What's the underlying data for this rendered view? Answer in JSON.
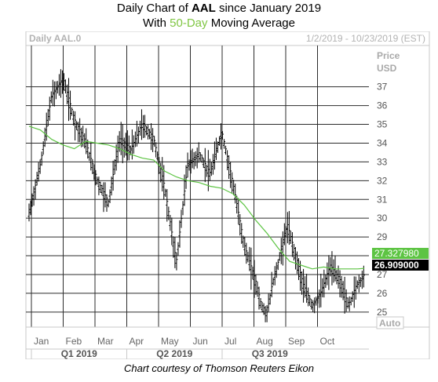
{
  "header": {
    "title_prefix": "Daily Chart of ",
    "ticker": "AAL",
    "title_suffix": " since January 2019",
    "subtitle_prefix": "With ",
    "subtitle_highlight": "50-Day",
    "subtitle_suffix": " Moving Average"
  },
  "chart_data": {
    "type": "line",
    "symbol_label": "Daily AAL.0",
    "date_range": "1/2/2019 - 10/23/2019 (EST)",
    "price_label": "Price",
    "currency_label": "USD",
    "auto_label": "Auto",
    "ylim": [
      24.2,
      39.2
    ],
    "yticks": [
      25,
      26,
      27,
      28,
      29,
      30,
      31,
      32,
      33,
      34,
      35,
      36,
      37
    ],
    "months": [
      "Jan",
      "Feb",
      "Mar",
      "Apr",
      "May",
      "Jun",
      "Jul",
      "Aug",
      "Sep",
      "Oct"
    ],
    "quarters": [
      "Q1 2019",
      "Q2 2019",
      "Q3 2019"
    ],
    "grid": true,
    "colors": {
      "price": "#000000",
      "moving_average": "#5dc443",
      "ma_box": "#5dc443",
      "last_box": "#000000"
    },
    "series": [
      {
        "kind": "price",
        "x": [
          0,
          10,
          20,
          30,
          40,
          50,
          60,
          70,
          80,
          90,
          100,
          110,
          120,
          130,
          140,
          150,
          160,
          170,
          180,
          190,
          200,
          205,
          210,
          215,
          220,
          228,
          236,
          242,
          250,
          258,
          266,
          274,
          282,
          290,
          296
        ],
        "values": [
          30.2,
          32.8,
          36.5,
          37.4,
          35.2,
          34.0,
          32.0,
          30.8,
          34.2,
          33.6,
          35.0,
          34.2,
          31.5,
          27.6,
          32.8,
          33.4,
          32.3,
          34.6,
          31.8,
          28.5,
          26.6,
          25.3,
          24.9,
          26.5,
          27.6,
          29.6,
          27.8,
          26.4,
          25.3,
          26.0,
          27.4,
          26.7,
          25.3,
          26.5,
          26.909
        ]
      },
      {
        "name": "50-Day",
        "kind": "moving_average",
        "x": [
          0,
          10,
          20,
          30,
          40,
          50,
          60,
          70,
          80,
          90,
          100,
          110,
          120,
          130,
          140,
          150,
          160,
          170,
          180,
          190,
          200,
          210,
          220,
          230,
          240,
          250,
          260,
          270,
          280,
          290,
          296
        ],
        "values": [
          34.9,
          34.7,
          34.2,
          33.9,
          33.7,
          34.1,
          34.0,
          33.9,
          33.7,
          33.4,
          33.2,
          33.1,
          32.5,
          32.2,
          32.0,
          31.9,
          31.7,
          31.6,
          31.3,
          30.7,
          29.9,
          29.2,
          28.4,
          27.7,
          27.5,
          27.3,
          27.4,
          27.3,
          27.3,
          27.3,
          27.33
        ]
      }
    ],
    "last_values": {
      "moving_average": "27.327980",
      "price": "26.909000"
    }
  },
  "footer": {
    "credit": "Chart courtesy of Thomson Reuters Eikon"
  }
}
